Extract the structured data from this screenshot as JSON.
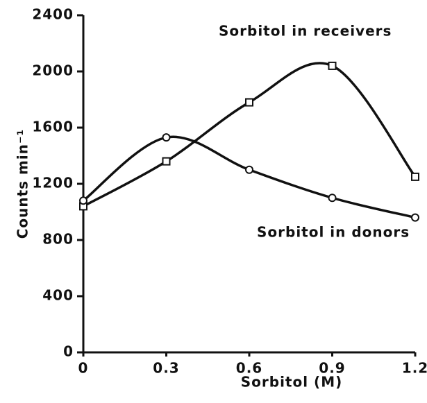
{
  "chart_data": {
    "type": "line",
    "x_label": "Sorbitol  (M)",
    "y_label": "Counts   min⁻¹",
    "x": [
      0,
      0.3,
      0.6,
      0.9,
      1.2
    ],
    "series": [
      {
        "name": "Sorbitol in receivers",
        "color": "#111111",
        "marker": "square",
        "values": [
          1040,
          1360,
          1780,
          2040,
          1250
        ]
      },
      {
        "name": "Sorbitol in donors",
        "color": "#111111",
        "marker": "circle",
        "values": [
          1080,
          1530,
          1300,
          1100,
          960
        ]
      }
    ],
    "xlim": [
      0,
      1.2
    ],
    "ylim": [
      0,
      2400
    ],
    "xticks": [
      0,
      0.3,
      0.6,
      0.9,
      1.2
    ],
    "yticks": [
      0,
      400,
      800,
      1200,
      1600,
      2000,
      2400
    ],
    "grid": false
  }
}
